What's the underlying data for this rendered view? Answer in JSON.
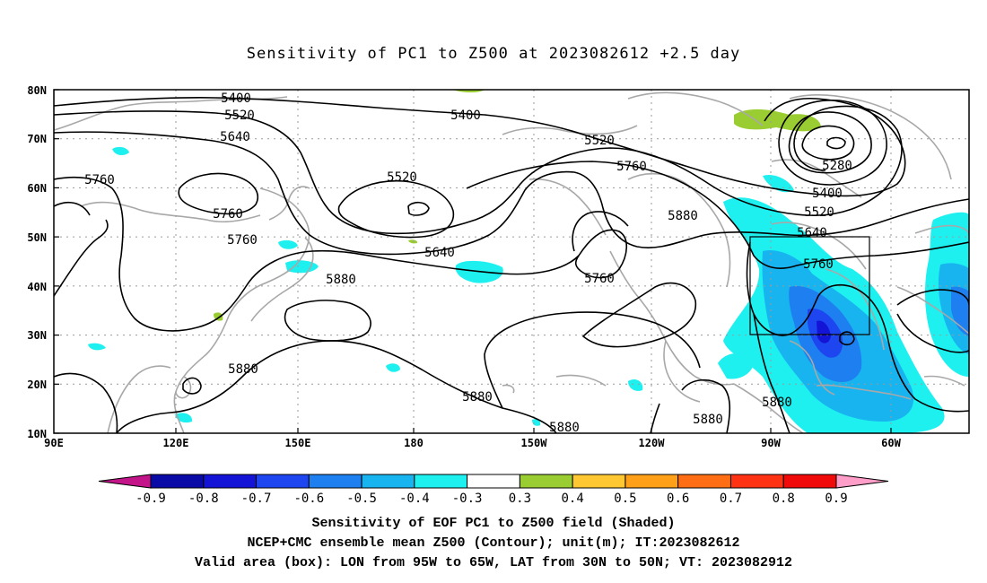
{
  "title": "Sensitivity of PC1 to Z500 at 2023082612 +2.5 day",
  "map": {
    "lat_labels": [
      "80N",
      "70N",
      "60N",
      "50N",
      "40N",
      "30N",
      "20N",
      "10N"
    ],
    "lon_labels": [
      "90E",
      "120E",
      "150E",
      "180",
      "150W",
      "120W",
      "90W",
      "60W"
    ],
    "contour_labels": [
      "5400",
      "5520",
      "5640",
      "5400",
      "5520",
      "5760",
      "5760",
      "5520",
      "5760",
      "5760",
      "5640",
      "5880",
      "5880",
      "5880",
      "5880",
      "5280",
      "5400",
      "5520",
      "5640",
      "5760",
      "5880",
      "5760",
      "5880",
      "5880"
    ],
    "valid_box": {
      "lon_from": "95W",
      "lon_to": "65W",
      "lat_from": "30N",
      "lat_to": "50N"
    },
    "colors": {
      "coast": "#a8a8a8",
      "contour": "#000000",
      "grid": "#9a9a9a"
    }
  },
  "colorbar": {
    "labels": [
      "-0.9",
      "-0.8",
      "-0.7",
      "-0.6",
      "-0.5",
      "-0.4",
      "-0.3",
      "0.3",
      "0.4",
      "0.5",
      "0.6",
      "0.7",
      "0.8",
      "0.9"
    ],
    "colors": [
      "#c3148a",
      "#0a0aa6",
      "#1414d6",
      "#1e46f0",
      "#1e7ff0",
      "#18b4f0",
      "#1ef0f0",
      "#ffffff",
      "#9acd32",
      "#ffc832",
      "#ffa018",
      "#ff6e14",
      "#ff3214",
      "#f00a0a",
      "#ff9ec8"
    ]
  },
  "captions": [
    "Sensitivity of EOF PC1 to Z500 field (Shaded)",
    "NCEP+CMC ensemble mean Z500 (Contour); unit(m); IT:2023082612",
    "Valid area (box): LON from 95W to 65W, LAT from 30N to 50N; VT: 2023082912"
  ]
}
